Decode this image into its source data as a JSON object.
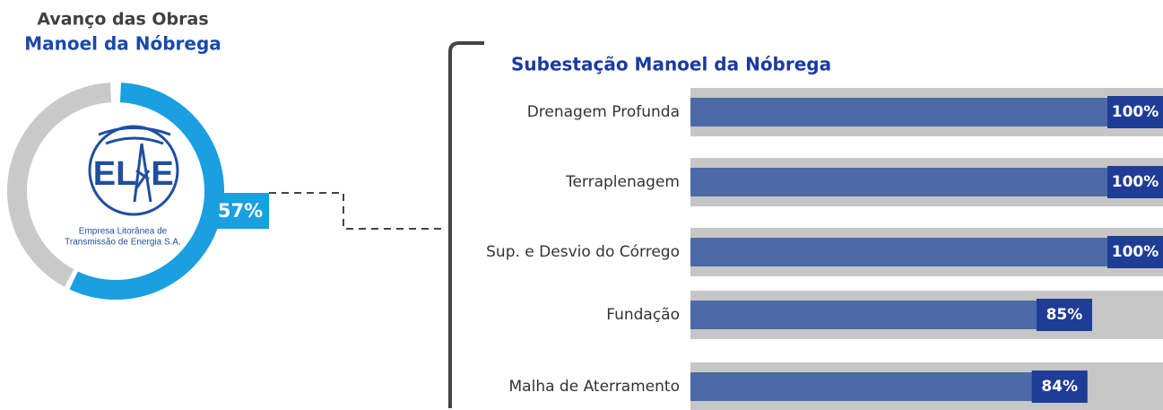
{
  "chart_data": [
    {
      "type": "donut",
      "title": "Avanço das Obras",
      "subtitle": "Manoel da Nóbrega",
      "values": [
        57
      ],
      "value_labels": [
        "57%"
      ],
      "ylim": [
        0,
        100
      ],
      "color": "#1a9fe0",
      "track_color": "#c9c9c9"
    },
    {
      "type": "barh",
      "title": "Subestação Manoel da Nóbrega",
      "categories": [
        "Drenagem Profunda",
        "Terraplenagem",
        "Sup. e Desvio do Córrego",
        "Fundação",
        "Malha de Aterramento"
      ],
      "values": [
        100,
        100,
        100,
        85,
        84
      ],
      "value_labels": [
        "100%",
        "100%",
        "100%",
        "85%",
        "84%"
      ],
      "xlim": [
        0,
        100
      ],
      "color": "#4c6aa8",
      "track_color": "#c6c6c6",
      "label_color": "#1f3c96"
    }
  ],
  "logo": {
    "letters": [
      "EL",
      "E"
    ],
    "caption": [
      "Empresa Litorânea de",
      "Transmissão de Energia S.A."
    ]
  }
}
